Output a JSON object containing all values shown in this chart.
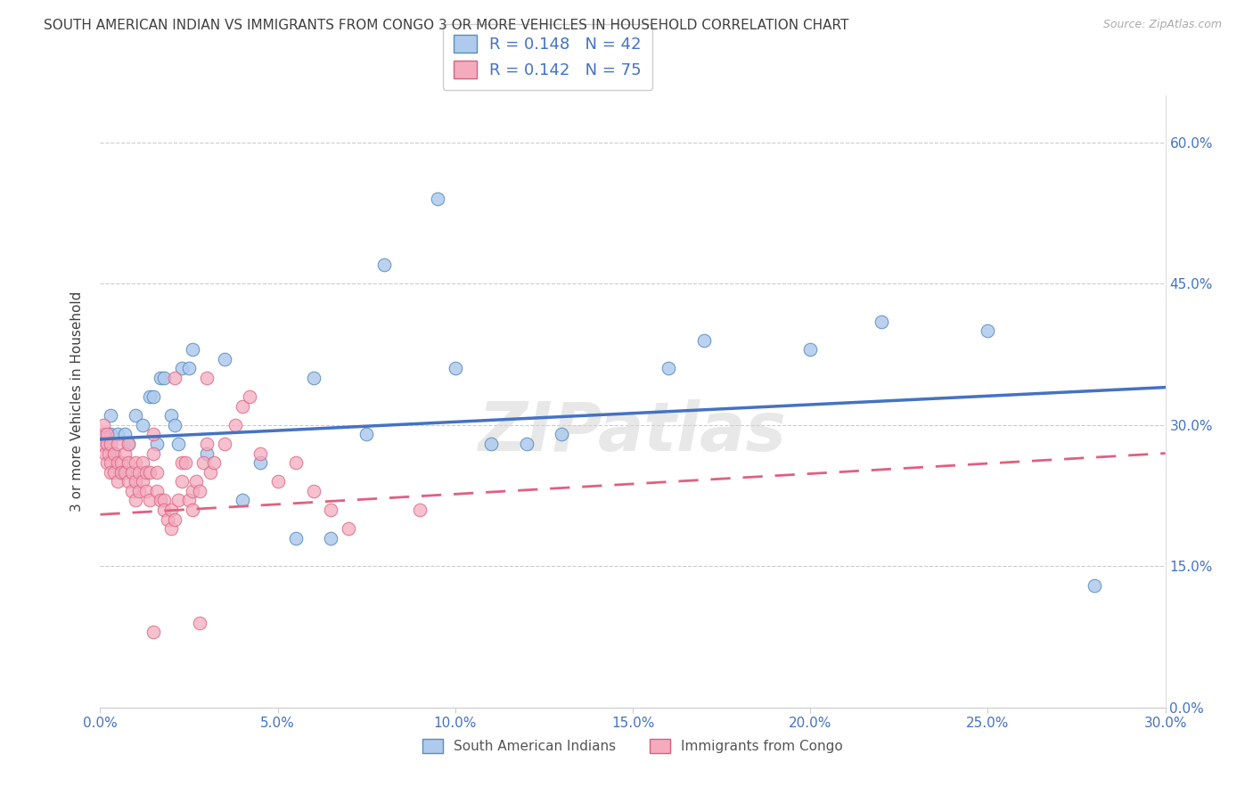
{
  "title": "SOUTH AMERICAN INDIAN VS IMMIGRANTS FROM CONGO 3 OR MORE VEHICLES IN HOUSEHOLD CORRELATION CHART",
  "source": "Source: ZipAtlas.com",
  "xlabel_ticks": [
    "0.0%",
    "5.0%",
    "10.0%",
    "15.0%",
    "20.0%",
    "25.0%",
    "30.0%"
  ],
  "ylabel_ticks": [
    "0.0%",
    "15.0%",
    "30.0%",
    "45.0%",
    "60.0%"
  ],
  "xlabel_vals": [
    0,
    5,
    10,
    15,
    20,
    25,
    30
  ],
  "ylabel_vals": [
    0,
    15,
    30,
    45,
    60
  ],
  "xlim": [
    0,
    30
  ],
  "ylim": [
    0,
    65
  ],
  "ylabel": "3 or more Vehicles in Household",
  "scatter_label1": "South American Indians",
  "scatter_label2": "Immigrants from Congo",
  "color_blue_fill": "#AECBEE",
  "color_blue_edge": "#5B8DB8",
  "color_pink_fill": "#F4ABBE",
  "color_pink_edge": "#D96080",
  "color_blue_line": "#4472C4",
  "color_pink_line": "#E06080",
  "color_axis": "#4472C4",
  "color_title": "#404040",
  "color_legend_val": "#4472C4",
  "watermark": "ZIPatlas",
  "legend_R1": "0.148",
  "legend_N1": "42",
  "legend_R2": "0.142",
  "legend_N2": "75",
  "blue_dots_x": [
    0.1,
    0.2,
    0.3,
    0.3,
    0.4,
    0.5,
    0.6,
    0.7,
    0.8,
    1.0,
    1.2,
    1.4,
    1.5,
    1.6,
    1.7,
    1.8,
    2.0,
    2.1,
    2.2,
    2.3,
    2.5,
    2.6,
    3.0,
    3.5,
    4.0,
    4.5,
    5.5,
    6.5,
    7.5,
    8.0,
    9.5,
    11.0,
    12.0,
    13.0,
    16.0,
    17.0,
    22.0,
    25.0,
    28.0,
    10.0,
    20.0,
    6.0
  ],
  "blue_dots_y": [
    29,
    28,
    31,
    29,
    27,
    29,
    25,
    29,
    28,
    31,
    30,
    33,
    33,
    28,
    35,
    35,
    31,
    30,
    28,
    36,
    36,
    38,
    27,
    37,
    22,
    26,
    18,
    18,
    29,
    47,
    54,
    28,
    28,
    29,
    36,
    39,
    41,
    40,
    13,
    36,
    38,
    35
  ],
  "pink_dots_x": [
    0.05,
    0.1,
    0.1,
    0.15,
    0.2,
    0.2,
    0.2,
    0.25,
    0.3,
    0.3,
    0.3,
    0.4,
    0.4,
    0.5,
    0.5,
    0.5,
    0.6,
    0.6,
    0.7,
    0.7,
    0.8,
    0.8,
    0.8,
    0.9,
    0.9,
    1.0,
    1.0,
    1.0,
    1.1,
    1.1,
    1.2,
    1.2,
    1.3,
    1.3,
    1.4,
    1.4,
    1.5,
    1.5,
    1.6,
    1.6,
    1.7,
    1.8,
    1.8,
    1.9,
    2.0,
    2.0,
    2.1,
    2.2,
    2.3,
    2.3,
    2.4,
    2.5,
    2.6,
    2.6,
    2.7,
    2.8,
    2.9,
    3.0,
    3.1,
    3.2,
    3.5,
    3.8,
    4.0,
    4.2,
    5.0,
    5.5,
    6.0,
    6.5,
    7.0,
    9.0,
    2.1,
    3.0,
    1.5,
    2.8,
    4.5
  ],
  "pink_dots_y": [
    28,
    29,
    30,
    27,
    28,
    29,
    26,
    27,
    26,
    28,
    25,
    27,
    25,
    28,
    26,
    24,
    26,
    25,
    27,
    25,
    28,
    26,
    24,
    23,
    25,
    26,
    24,
    22,
    25,
    23,
    24,
    26,
    23,
    25,
    25,
    22,
    27,
    29,
    25,
    23,
    22,
    22,
    21,
    20,
    19,
    21,
    20,
    22,
    26,
    24,
    26,
    22,
    23,
    21,
    24,
    23,
    26,
    28,
    25,
    26,
    28,
    30,
    32,
    33,
    24,
    26,
    23,
    21,
    19,
    21,
    35,
    35,
    8,
    9,
    27
  ],
  "blue_line_x0": 0,
  "blue_line_x1": 30,
  "blue_line_y0": 28.5,
  "blue_line_y1": 34.0,
  "pink_line_x0": 0,
  "pink_line_x1": 30,
  "pink_line_y0": 20.5,
  "pink_line_y1": 27.0
}
